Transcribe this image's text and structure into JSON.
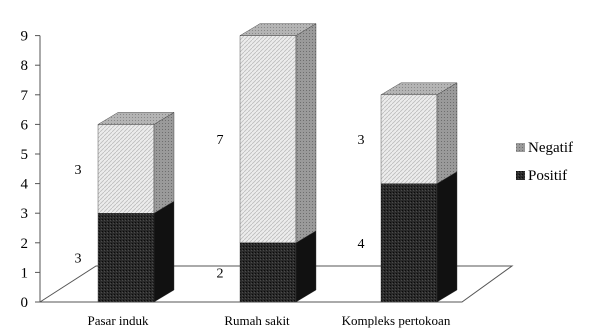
{
  "chart_data": {
    "type": "bar",
    "stacked": true,
    "three_d": true,
    "categories": [
      "Pasar induk",
      "Rumah sakit",
      "Kompleks pertokoan"
    ],
    "series": [
      {
        "name": "Positif",
        "values": [
          3,
          2,
          4
        ],
        "color": "#1c1c1c",
        "side_color": "#111111",
        "top_color": "#454545"
      },
      {
        "name": "Negatif",
        "values": [
          3,
          7,
          3
        ],
        "color": "#dcdcdc",
        "side_color": "#8a8a8a",
        "top_color": "#a9a9a9"
      }
    ],
    "ylim": [
      0,
      9
    ],
    "y_ticks": [
      0,
      1,
      2,
      3,
      4,
      5,
      6,
      7,
      8,
      9
    ],
    "grid": false,
    "legend_position": "right",
    "floor_color": "#ffffff",
    "axis_color": "#555555"
  }
}
